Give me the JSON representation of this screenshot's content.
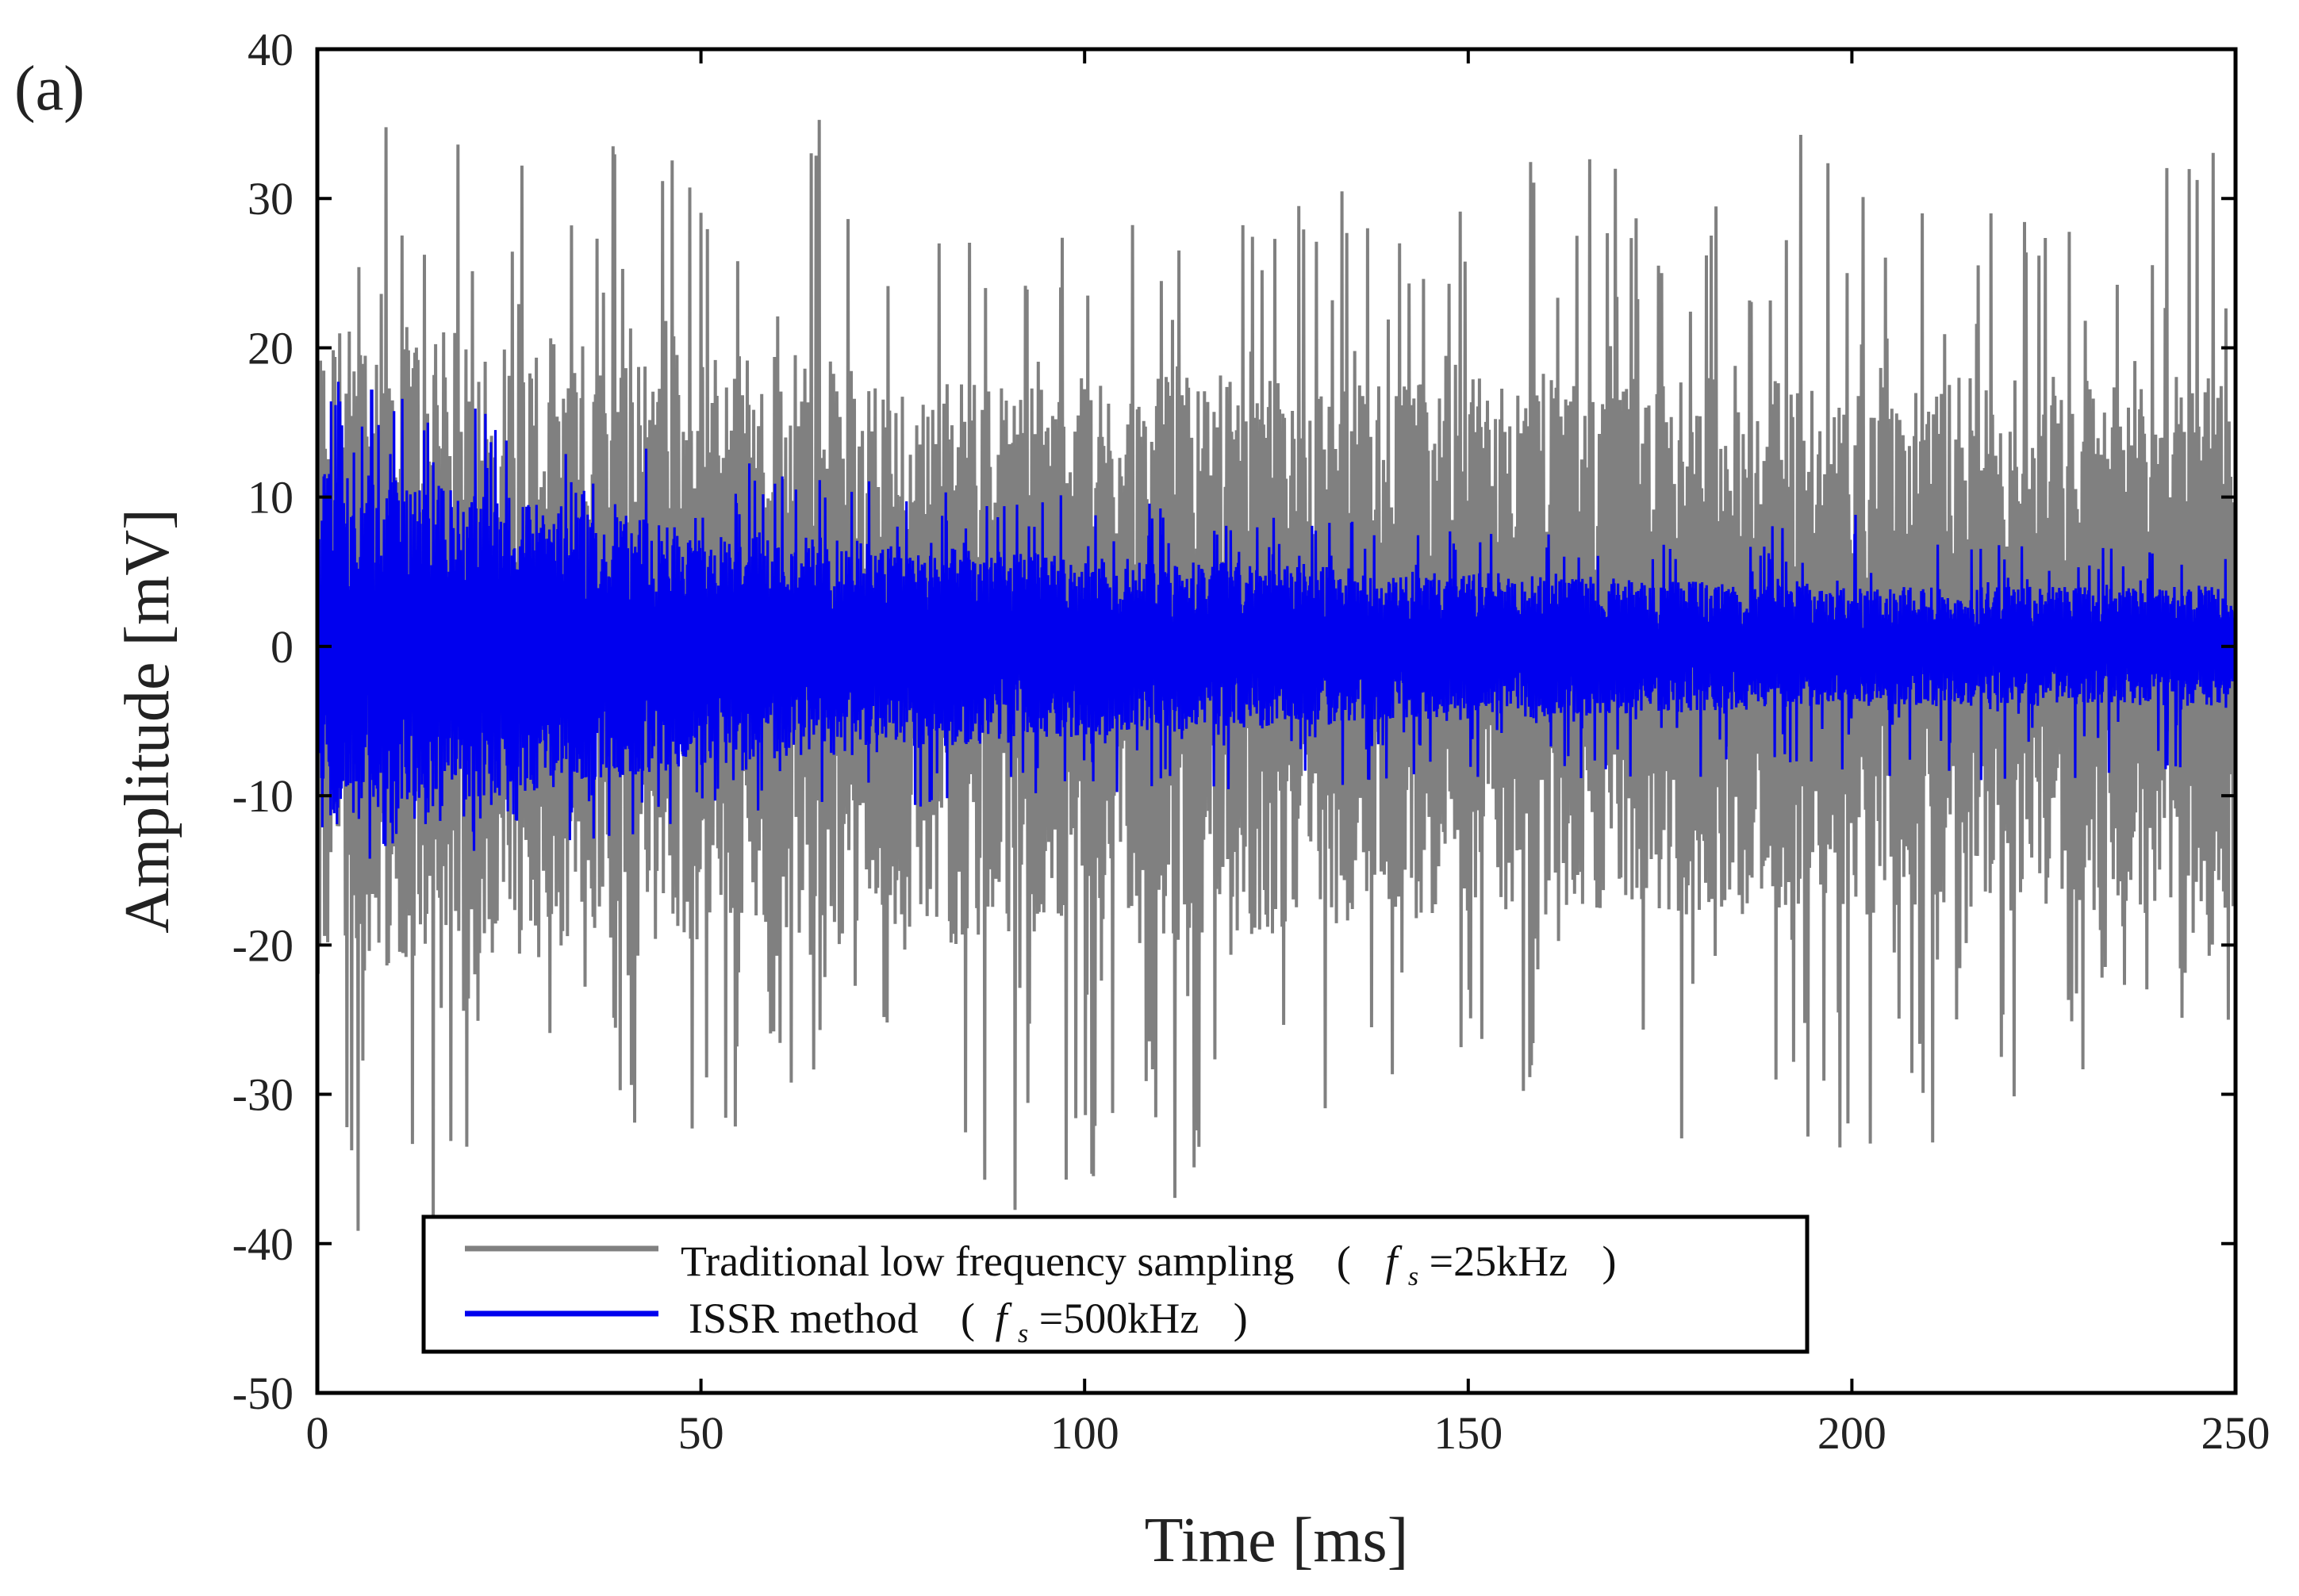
{
  "chart_data": {
    "type": "line",
    "panel_label": "(a)",
    "title": "",
    "xlabel": "Time [ms]",
    "ylabel": "Amplitude [mV]",
    "xlim": [
      0,
      250
    ],
    "ylim": [
      -50,
      40
    ],
    "x_ticks": [
      0,
      50,
      100,
      150,
      200,
      250
    ],
    "y_ticks": [
      40,
      30,
      20,
      10,
      0,
      -10,
      -20,
      -30,
      -40,
      -50
    ],
    "grid": false,
    "legend_position": "bottom-center",
    "series": [
      {
        "name": "Traditional low frequency sampling",
        "legend_prefix": "Traditional low frequency sampling",
        "legend_open": "(",
        "legend_f": "f",
        "legend_sub": "s",
        "legend_value": "=25kHz",
        "legend_close": ")",
        "color": "#808080",
        "sampling_rate": "25kHz",
        "description": "noise-like signal centered at 0, envelope about ±20 mV with peaks to about ±38 mV",
        "envelope_points": [
          {
            "x": 0,
            "upper": 22,
            "lower": -22,
            "peak_max": 37,
            "peak_min": -41
          },
          {
            "x": 50,
            "upper": 20,
            "lower": -20,
            "peak_max": 34,
            "peak_min": -35
          },
          {
            "x": 62,
            "upper": 20,
            "lower": -20,
            "peak_max": 38,
            "peak_min": -30
          },
          {
            "x": 77,
            "upper": 18,
            "lower": -20,
            "peak_max": 30,
            "peak_min": -38
          },
          {
            "x": 110,
            "upper": 18,
            "lower": -20,
            "peak_max": 30,
            "peak_min": -38
          },
          {
            "x": 150,
            "upper": 18,
            "lower": -18,
            "peak_max": 33,
            "peak_min": -30
          },
          {
            "x": 200,
            "upper": 18,
            "lower": -18,
            "peak_max": 35,
            "peak_min": -36
          },
          {
            "x": 250,
            "upper": 18,
            "lower": -18,
            "peak_max": 34,
            "peak_min": -25
          }
        ]
      },
      {
        "name": "ISSR method",
        "legend_prefix": "ISSR method",
        "legend_open": "(",
        "legend_f": "f",
        "legend_sub": "s",
        "legend_value": "=500kHz",
        "legend_close": ")",
        "color": "#0000ee",
        "sampling_rate": "500kHz",
        "description": "decaying noise band centered at 0",
        "envelope_points": [
          {
            "x": 0,
            "upper": 12,
            "lower": -12,
            "peak_max": 18,
            "peak_min": -16
          },
          {
            "x": 50,
            "upper": 8,
            "lower": -8,
            "peak_max": 13,
            "peak_min": -12
          },
          {
            "x": 100,
            "upper": 6,
            "lower": -6,
            "peak_max": 10,
            "peak_min": -10
          },
          {
            "x": 150,
            "upper": 5,
            "lower": -5,
            "peak_max": 8,
            "peak_min": -9
          },
          {
            "x": 200,
            "upper": 4,
            "lower": -4,
            "peak_max": 9,
            "peak_min": -9
          },
          {
            "x": 250,
            "upper": 4,
            "lower": -4,
            "peak_max": 6,
            "peak_min": -9
          }
        ]
      }
    ]
  }
}
